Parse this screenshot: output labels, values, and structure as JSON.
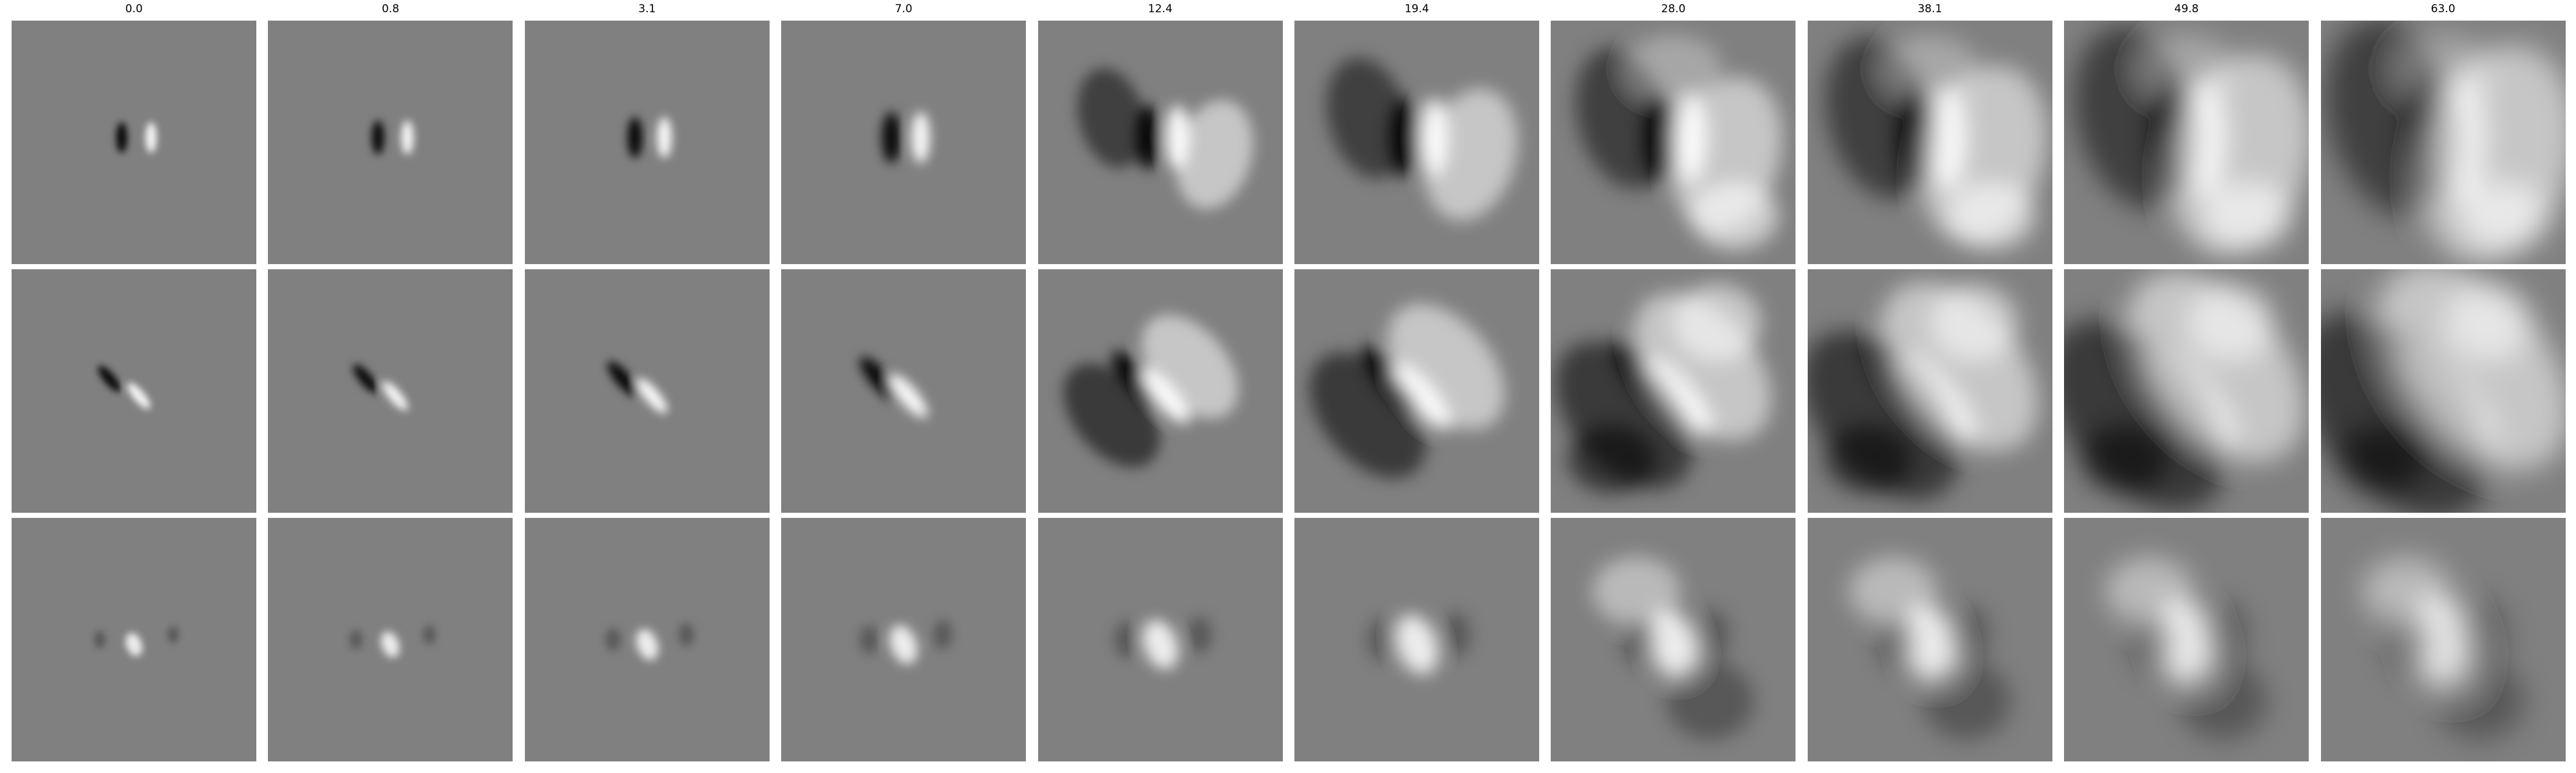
{
  "figure": {
    "columns": [
      {
        "title": "0.0",
        "blur": 0.35,
        "spread": 0.45
      },
      {
        "title": "0.8",
        "blur": 0.45,
        "spread": 0.5
      },
      {
        "title": "3.1",
        "blur": 0.55,
        "spread": 0.6
      },
      {
        "title": "7.0",
        "blur": 0.75,
        "spread": 0.75
      },
      {
        "title": "12.4",
        "blur": 1.0,
        "spread": 0.95
      },
      {
        "title": "19.4",
        "blur": 1.3,
        "spread": 1.15
      },
      {
        "title": "28.0",
        "blur": 1.6,
        "spread": 1.35
      },
      {
        "title": "38.1",
        "blur": 1.9,
        "spread": 1.55
      },
      {
        "title": "49.8",
        "blur": 2.2,
        "spread": 1.75
      },
      {
        "title": "63.0",
        "blur": 2.5,
        "spread": 1.9
      }
    ],
    "rows": [
      {
        "pattern": "vertical-dark-bright-pair",
        "contrast": 1.0
      },
      {
        "pattern": "diagonal-dark-bright-pair",
        "contrast": 1.0
      },
      {
        "pattern": "bright-center-blob",
        "contrast": 0.9
      }
    ]
  },
  "colors": {
    "background": "#ffffff",
    "panel_base": "#808080",
    "dark": "#000000",
    "bright": "#ffffff"
  }
}
